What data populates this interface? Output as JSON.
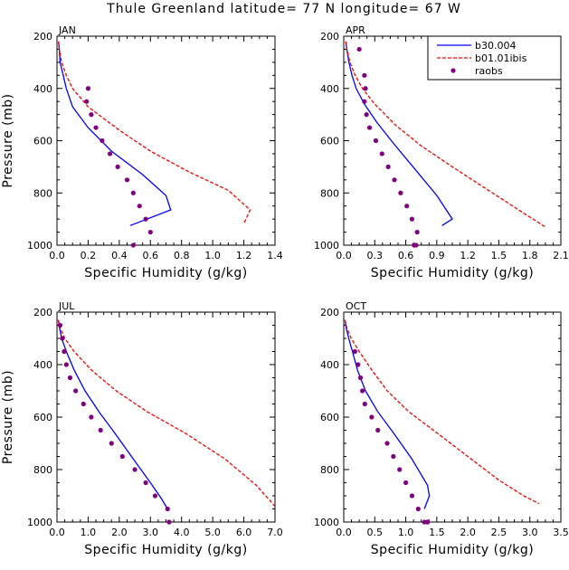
{
  "title": "Thule Greenland  latitude= 77 N longitude= 67 W",
  "colors": {
    "b30": "#0000ff",
    "b01": "#ff0000",
    "raobs": "#800080",
    "axis": "#000000"
  },
  "legend": {
    "placement": "top-right of APR panel",
    "entries": [
      "b30.004",
      "b01.01ibis",
      "raobs"
    ]
  },
  "chart_data": [
    {
      "type": "line",
      "panel": "JAN",
      "xlabel": "Specific Humidity (g/kg)",
      "ylabel": "Pressure (mb)",
      "xlim": [
        0,
        1.4
      ],
      "ylim": [
        1000,
        200
      ],
      "y_reversed": true,
      "xticks": [
        0.0,
        0.2,
        0.4,
        0.6,
        0.8,
        1.0,
        1.2,
        1.4
      ],
      "xtick_labels": [
        "0.0",
        "0.2",
        "0.4",
        "0.6",
        "0.8",
        "1.0",
        "1.2",
        "1.4"
      ],
      "yticks": [
        200,
        400,
        600,
        800,
        1000
      ],
      "series": [
        {
          "name": "b30.004",
          "style": "solid",
          "x": [
            0.01,
            0.015,
            0.02,
            0.04,
            0.06,
            0.1,
            0.2,
            0.35,
            0.55,
            0.7,
            0.73,
            0.47
          ],
          "y": [
            220,
            250,
            300,
            350,
            400,
            470,
            550,
            640,
            730,
            810,
            865,
            925
          ]
        },
        {
          "name": "b01.01ibis",
          "style": "dashed",
          "x": [
            0.01,
            0.015,
            0.03,
            0.06,
            0.1,
            0.2,
            0.4,
            0.6,
            0.85,
            1.1,
            1.24,
            1.21,
            1.2
          ],
          "y": [
            220,
            250,
            300,
            350,
            400,
            470,
            560,
            640,
            720,
            790,
            865,
            905,
            915
          ]
        },
        {
          "name": "raobs",
          "style": "markers",
          "x": [
            0.2,
            0.19,
            0.22,
            0.25,
            0.29,
            0.34,
            0.39,
            0.45,
            0.49,
            0.53,
            0.57,
            0.6,
            0.49
          ],
          "y": [
            400,
            450,
            500,
            550,
            600,
            650,
            700,
            750,
            800,
            850,
            900,
            950,
            1000
          ]
        }
      ]
    },
    {
      "type": "line",
      "panel": "APR",
      "xlabel": "Specific Humidity (g/kg)",
      "ylabel": "",
      "xlim": [
        0,
        2.1
      ],
      "ylim": [
        1000,
        200
      ],
      "y_reversed": true,
      "xticks": [
        0.0,
        0.3,
        0.6,
        0.9,
        1.2,
        1.5,
        1.8,
        2.1
      ],
      "xtick_labels": [
        "0.0",
        "0.3",
        "0.6",
        "0.9",
        "1.2",
        "1.5",
        "1.8",
        "2.1"
      ],
      "yticks": [
        200,
        400,
        600,
        800,
        1000
      ],
      "series": [
        {
          "name": "b30.004",
          "style": "solid",
          "x": [
            0.02,
            0.03,
            0.05,
            0.08,
            0.12,
            0.2,
            0.32,
            0.48,
            0.67,
            0.9,
            1.05,
            0.95
          ],
          "y": [
            220,
            250,
            300,
            350,
            400,
            460,
            530,
            610,
            700,
            810,
            900,
            925
          ]
        },
        {
          "name": "b01.01ibis",
          "style": "dashed",
          "x": [
            0.02,
            0.03,
            0.06,
            0.11,
            0.18,
            0.3,
            0.5,
            0.75,
            1.05,
            1.4,
            1.75,
            1.95
          ],
          "y": [
            220,
            250,
            300,
            350,
            400,
            460,
            540,
            620,
            700,
            790,
            880,
            930
          ]
        },
        {
          "name": "raobs",
          "style": "markers",
          "x": [
            0.15,
            0.2,
            0.21,
            0.2,
            0.22,
            0.25,
            0.31,
            0.37,
            0.43,
            0.49,
            0.55,
            0.61,
            0.66,
            0.71,
            0.7,
            0.68
          ],
          "y": [
            250,
            350,
            400,
            450,
            500,
            550,
            600,
            650,
            700,
            750,
            800,
            850,
            900,
            950,
            1000,
            1000
          ]
        }
      ]
    },
    {
      "type": "line",
      "panel": "JUL",
      "xlabel": "Specific Humidity (g/kg)",
      "ylabel": "Pressure (mb)",
      "xlim": [
        0,
        7.0
      ],
      "ylim": [
        1000,
        200
      ],
      "y_reversed": true,
      "xticks": [
        0,
        1,
        2,
        3,
        4,
        5,
        6,
        7
      ],
      "xtick_labels": [
        "0.0",
        "1.0",
        "2.0",
        "3.0",
        "4.0",
        "5.0",
        "6.0",
        "7.0"
      ],
      "yticks": [
        200,
        400,
        600,
        800,
        1000
      ],
      "series": [
        {
          "name": "b30.004",
          "style": "solid",
          "x": [
            0.04,
            0.08,
            0.15,
            0.3,
            0.55,
            0.9,
            1.35,
            1.85,
            2.45,
            3.0,
            3.35,
            3.55
          ],
          "y": [
            230,
            260,
            300,
            350,
            420,
            500,
            580,
            660,
            760,
            850,
            910,
            950
          ]
        },
        {
          "name": "b01.01ibis",
          "style": "dashed",
          "x": [
            0.04,
            0.1,
            0.25,
            0.55,
            1.1,
            1.9,
            2.9,
            4.1,
            5.4,
            6.4,
            7.0
          ],
          "y": [
            230,
            260,
            300,
            350,
            420,
            500,
            580,
            660,
            760,
            860,
            940
          ]
        },
        {
          "name": "raobs",
          "style": "markers",
          "x": [
            0.1,
            0.17,
            0.23,
            0.3,
            0.42,
            0.6,
            0.85,
            1.1,
            1.4,
            1.75,
            2.1,
            2.5,
            2.85,
            3.15,
            3.55,
            3.6
          ],
          "y": [
            250,
            300,
            350,
            400,
            450,
            500,
            550,
            600,
            650,
            700,
            750,
            800,
            850,
            900,
            950,
            1000
          ]
        }
      ]
    },
    {
      "type": "line",
      "panel": "OCT",
      "xlabel": "Specific Humidity (g/kg)",
      "ylabel": "",
      "xlim": [
        0,
        3.5
      ],
      "ylim": [
        1000,
        200
      ],
      "y_reversed": true,
      "xticks": [
        0,
        0.5,
        1.0,
        1.5,
        2.0,
        2.5,
        3.0,
        3.5
      ],
      "xtick_labels": [
        "0.0",
        "0.5",
        "1.0",
        "1.5",
        "2.0",
        "2.5",
        "3.0",
        "3.5"
      ],
      "yticks": [
        200,
        400,
        600,
        800,
        1000
      ],
      "series": [
        {
          "name": "b30.004",
          "style": "solid",
          "x": [
            0.02,
            0.04,
            0.08,
            0.14,
            0.22,
            0.35,
            0.55,
            0.8,
            1.1,
            1.35,
            1.38,
            1.3
          ],
          "y": [
            230,
            260,
            300,
            350,
            420,
            500,
            580,
            660,
            760,
            860,
            900,
            950
          ]
        },
        {
          "name": "b01.01ibis",
          "style": "dashed",
          "x": [
            0.02,
            0.05,
            0.12,
            0.25,
            0.45,
            0.7,
            1.05,
            1.5,
            2.0,
            2.5,
            2.9,
            3.15
          ],
          "y": [
            230,
            260,
            300,
            350,
            420,
            500,
            580,
            660,
            750,
            840,
            900,
            930
          ]
        },
        {
          "name": "raobs",
          "style": "markers",
          "x": [
            0.18,
            0.23,
            0.27,
            0.3,
            0.34,
            0.45,
            0.55,
            0.7,
            0.8,
            0.9,
            1.0,
            1.1,
            1.2,
            1.3,
            1.35,
            1.35
          ],
          "y": [
            350,
            400,
            450,
            500,
            550,
            600,
            650,
            700,
            750,
            800,
            850,
            900,
            950,
            1000,
            1000,
            1000
          ]
        }
      ]
    }
  ]
}
